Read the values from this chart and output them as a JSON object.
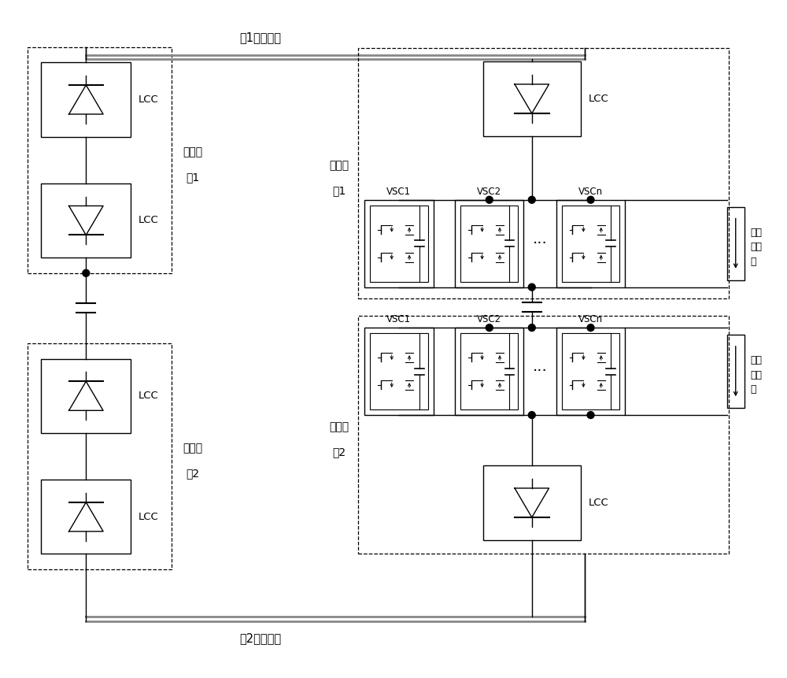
{
  "bg_color": "#ffffff",
  "top_label": "杗1直流线路",
  "bottom_label": "杗2直流线路",
  "rect_label1a": "整流站",
  "rect_label1b": "杗1",
  "rect_label2a": "整流站",
  "rect_label2b": "杗2",
  "inv_label1a": "逆变站",
  "inv_label1b": "杗1",
  "inv_label2a": "逆变站",
  "inv_label2b": "杗2",
  "arr_label1": "并联",
  "arr_label2": "避雷",
  "arr_label3": "器",
  "lcc_label": "LCC",
  "vsc1_label": "VSC1",
  "vsc2_label": "VSC2",
  "vscn_label": "VSCn"
}
